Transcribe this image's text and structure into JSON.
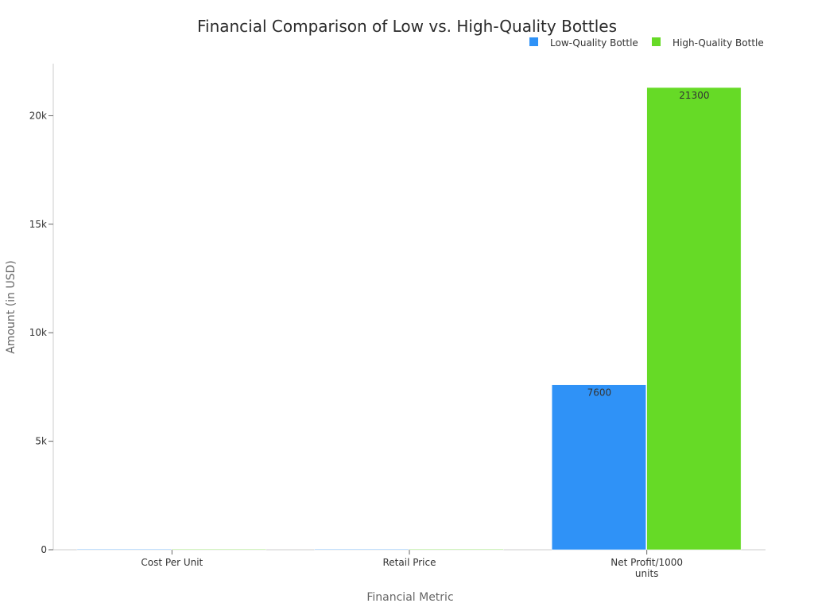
{
  "chart_data": {
    "type": "bar",
    "title": "Financial Comparison of Low vs. High-Quality Bottles",
    "xlabel": "Financial Metric",
    "ylabel": "Amount (in USD)",
    "categories": [
      "Cost Per Unit",
      "Retail Price",
      "Net Profit/1000 units"
    ],
    "category_lines": [
      [
        "Cost Per Unit"
      ],
      [
        "Retail Price"
      ],
      [
        "Net Profit/1000",
        "units"
      ]
    ],
    "series": [
      {
        "name": "Low-Quality Bottle",
        "values": [
          3,
          15,
          7600
        ],
        "color": "#2f92f7",
        "show_labels": [
          false,
          false,
          true
        ]
      },
      {
        "name": "High-Quality Bottle",
        "values": [
          5,
          30,
          21300
        ],
        "color": "#66da26",
        "show_labels": [
          false,
          false,
          true
        ]
      }
    ],
    "ylim": [
      0,
      22400
    ],
    "yticks": [
      0,
      5000,
      10000,
      15000,
      20000
    ],
    "ytick_labels": [
      "0",
      "5k",
      "10k",
      "15k",
      "20k"
    ],
    "legend_position": "top-right",
    "grid": false
  }
}
